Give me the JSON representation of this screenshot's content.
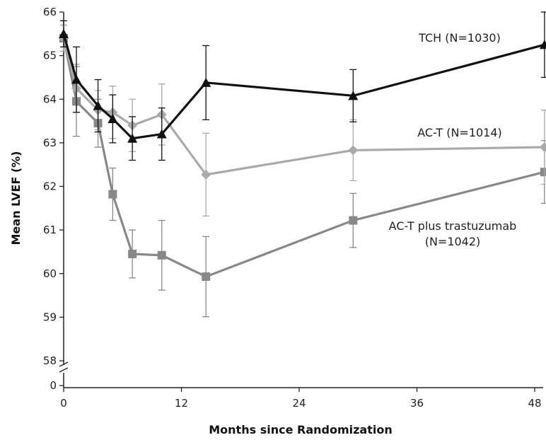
{
  "chart_data": {
    "type": "line",
    "xlabel": "Months since Randomization",
    "ylabel": "Mean LVEF (%)",
    "xlim": [
      0,
      49
    ],
    "ylim": [
      58,
      66
    ],
    "y_axis_break": true,
    "y_break_bottom_tick": 0,
    "x_ticks": [
      0,
      12,
      24,
      36,
      48
    ],
    "y_ticks": [
      58,
      59,
      60,
      61,
      62,
      63,
      64,
      65,
      66
    ],
    "grid": false,
    "series": [
      {
        "name": "TCH (N=1030)",
        "label_lines": [
          "TCH (N=1030)"
        ],
        "color": "#111111",
        "marker": "triangle",
        "x": [
          0,
          1.3,
          3.5,
          5,
          7,
          10,
          14.5,
          29.5,
          49
        ],
        "y": [
          65.5,
          64.45,
          63.85,
          63.55,
          63.1,
          63.2,
          64.38,
          64.08,
          65.25
        ],
        "err": [
          0.3,
          0.75,
          0.6,
          0.55,
          0.5,
          0.6,
          0.85,
          0.6,
          0.75
        ]
      },
      {
        "name": "AC-T (N=1014)",
        "label_lines": [
          "AC-T (N=1014)"
        ],
        "color": "#aaaaaa",
        "marker": "diamond",
        "x": [
          0,
          1.3,
          3.5,
          5,
          7,
          10,
          14.5,
          29.5,
          49
        ],
        "y": [
          65.4,
          64.25,
          63.75,
          63.7,
          63.4,
          63.65,
          62.27,
          62.83,
          62.9
        ],
        "err": [
          0.3,
          0.55,
          0.45,
          0.6,
          0.6,
          0.7,
          0.95,
          0.7,
          0.85
        ]
      },
      {
        "name": "AC-T plus trastuzumab (N=1042)",
        "label_lines": [
          "AC-T plus trastuzumab",
          "(N=1042)"
        ],
        "color": "#888888",
        "marker": "square",
        "x": [
          0,
          1.3,
          3.5,
          5,
          7,
          10,
          14.5,
          29.5,
          49
        ],
        "y": [
          65.4,
          63.95,
          63.45,
          61.82,
          60.45,
          60.42,
          59.93,
          61.22,
          62.33
        ],
        "err": [
          0.3,
          0.8,
          0.55,
          0.6,
          0.55,
          0.8,
          0.92,
          0.62,
          0.72
        ]
      }
    ]
  }
}
